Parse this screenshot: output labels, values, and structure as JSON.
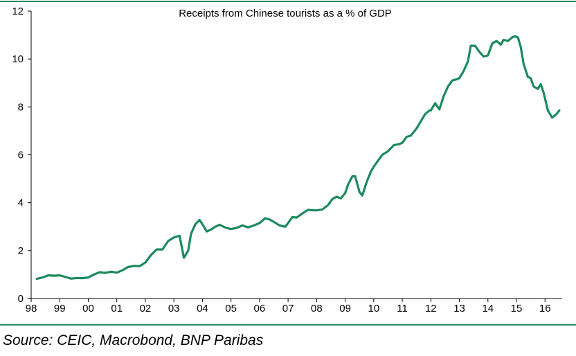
{
  "source": "Source: CEIC, Macrobond, BNP Paribas",
  "colors": {
    "line": "#1c8a5c",
    "rule": "#1c8a5c",
    "axis": "#000000"
  },
  "chart_data": {
    "type": "line",
    "title": "Receipts from Chinese tourists as a % of GDP",
    "xlabel": "",
    "ylabel": "",
    "xlim": [
      1998,
      2016.6
    ],
    "ylim": [
      0,
      12
    ],
    "yticks": [
      0,
      2,
      4,
      6,
      8,
      10,
      12
    ],
    "xticks": [
      {
        "value": 1998,
        "label": "98"
      },
      {
        "value": 1999,
        "label": "99"
      },
      {
        "value": 2000,
        "label": "00"
      },
      {
        "value": 2001,
        "label": "01"
      },
      {
        "value": 2002,
        "label": "02"
      },
      {
        "value": 2003,
        "label": "03"
      },
      {
        "value": 2004,
        "label": "04"
      },
      {
        "value": 2005,
        "label": "05"
      },
      {
        "value": 2006,
        "label": "06"
      },
      {
        "value": 2007,
        "label": "07"
      },
      {
        "value": 2008,
        "label": "08"
      },
      {
        "value": 2009,
        "label": "09"
      },
      {
        "value": 2010,
        "label": "10"
      },
      {
        "value": 2011,
        "label": "11"
      },
      {
        "value": 2012,
        "label": "12"
      },
      {
        "value": 2013,
        "label": "13"
      },
      {
        "value": 2014,
        "label": "14"
      },
      {
        "value": 2015,
        "label": "15"
      },
      {
        "value": 2016,
        "label": "16"
      }
    ],
    "grid": false,
    "legend": "none",
    "series": [
      {
        "x": [
          1998.2,
          1998.4,
          1998.6,
          1998.8,
          1999.0,
          1999.2,
          1999.4,
          1999.6,
          1999.8,
          2000.0,
          2000.2,
          2000.4,
          2000.6,
          2000.8,
          2001.0,
          2001.2,
          2001.4,
          2001.6,
          2001.8,
          2002.0,
          2002.2,
          2002.4,
          2002.6,
          2002.8,
          2003.0,
          2003.2,
          2003.35,
          2003.5,
          2003.6,
          2003.75,
          2003.9,
          2004.0,
          2004.15,
          2004.3,
          2004.45,
          2004.6,
          2004.8,
          2005.0,
          2005.2,
          2005.4,
          2005.6,
          2005.8,
          2006.0,
          2006.2,
          2006.35,
          2006.5,
          2006.7,
          2006.9,
          2007.0,
          2007.15,
          2007.3,
          2007.5,
          2007.7,
          2007.9,
          2008.0,
          2008.2,
          2008.4,
          2008.55,
          2008.7,
          2008.85,
          2009.0,
          2009.1,
          2009.25,
          2009.35,
          2009.5,
          2009.6,
          2009.75,
          2009.9,
          2010.0,
          2010.15,
          2010.3,
          2010.5,
          2010.7,
          2010.9,
          2011.0,
          2011.15,
          2011.3,
          2011.5,
          2011.65,
          2011.8,
          2011.95,
          2012.0,
          2012.15,
          2012.3,
          2012.45,
          2012.6,
          2012.75,
          2012.9,
          2013.0,
          2013.15,
          2013.3,
          2013.4,
          2013.55,
          2013.7,
          2013.85,
          2014.0,
          2014.15,
          2014.3,
          2014.45,
          2014.55,
          2014.7,
          2014.85,
          2014.95,
          2015.05,
          2015.15,
          2015.25,
          2015.4,
          2015.5,
          2015.6,
          2015.75,
          2015.85,
          2015.95,
          2016.1,
          2016.25,
          2016.4,
          2016.5
        ],
        "y": [
          0.82,
          0.88,
          0.97,
          0.95,
          0.97,
          0.9,
          0.83,
          0.86,
          0.85,
          0.88,
          1.0,
          1.1,
          1.07,
          1.12,
          1.08,
          1.18,
          1.32,
          1.36,
          1.35,
          1.5,
          1.82,
          2.05,
          2.05,
          2.4,
          2.55,
          2.62,
          1.7,
          2.0,
          2.7,
          3.1,
          3.28,
          3.1,
          2.8,
          2.88,
          3.0,
          3.08,
          2.96,
          2.9,
          2.95,
          3.05,
          2.97,
          3.05,
          3.15,
          3.35,
          3.3,
          3.2,
          3.05,
          3.0,
          3.15,
          3.4,
          3.38,
          3.55,
          3.7,
          3.68,
          3.68,
          3.72,
          3.9,
          4.15,
          4.25,
          4.18,
          4.4,
          4.75,
          5.1,
          5.1,
          4.45,
          4.3,
          4.85,
          5.3,
          5.5,
          5.75,
          6.0,
          6.15,
          6.4,
          6.45,
          6.5,
          6.75,
          6.8,
          7.1,
          7.4,
          7.7,
          7.85,
          7.85,
          8.15,
          7.9,
          8.45,
          8.85,
          9.1,
          9.15,
          9.2,
          9.5,
          9.9,
          10.55,
          10.55,
          10.3,
          10.1,
          10.15,
          10.65,
          10.75,
          10.6,
          10.8,
          10.75,
          10.9,
          10.95,
          10.9,
          10.5,
          9.8,
          9.25,
          9.2,
          8.85,
          8.75,
          8.95,
          8.6,
          7.85,
          7.55,
          7.7,
          7.85
        ]
      }
    ]
  }
}
